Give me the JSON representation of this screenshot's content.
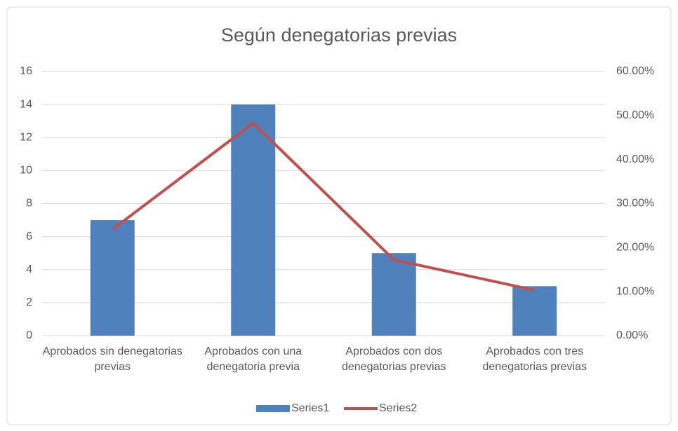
{
  "chart_data": {
    "type": "bar",
    "title": "Según denegatorias previas",
    "categories": [
      "Aprobados sin denegatorias previas",
      "Aprobados con una denegatoria previa",
      "Aprobados con dos denegatorias previas",
      "Aprobados con tres denegatorias previas"
    ],
    "series": [
      {
        "name": "Series1",
        "color": "#4f81bd",
        "values": [
          7,
          14,
          5,
          3
        ]
      },
      {
        "name": "Series2",
        "color": "#c0504d",
        "type": "line",
        "axis": "y2",
        "values": [
          24.14,
          48.28,
          17.24,
          10.34
        ]
      }
    ],
    "ylim": [
      0,
      16
    ],
    "yticks": [
      0,
      2,
      4,
      6,
      8,
      10,
      12,
      14,
      16
    ],
    "y2lim": [
      0,
      60
    ],
    "y2ticks": [
      {
        "value": 0,
        "label": "0.00%"
      },
      {
        "value": 10,
        "label": "10.00%"
      },
      {
        "value": 20,
        "label": "20.00%"
      },
      {
        "value": 30,
        "label": "30.00%"
      },
      {
        "value": 40,
        "label": "40.00%"
      },
      {
        "value": 50,
        "label": "50.00%"
      },
      {
        "value": 60,
        "label": "60.00%"
      }
    ],
    "grid": true,
    "legend": "bottom"
  }
}
